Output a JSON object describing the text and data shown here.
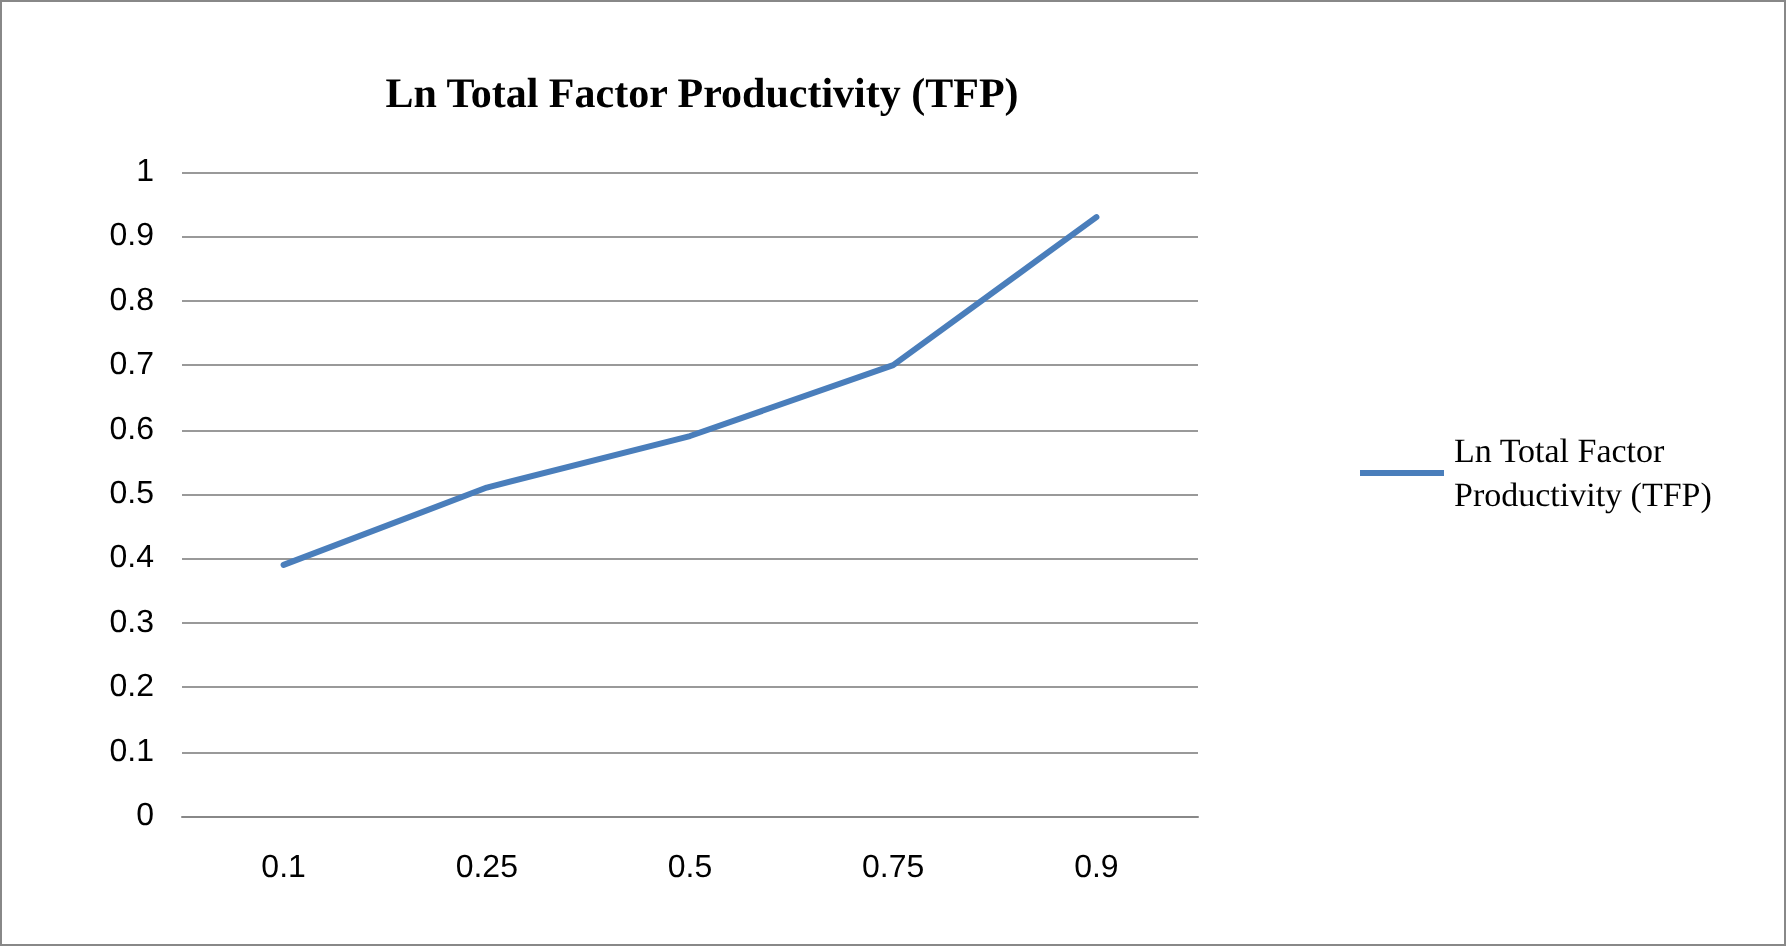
{
  "chart_data": {
    "type": "line",
    "title": "Ln Total Factor Productivity (TFP)",
    "categories": [
      "0.1",
      "0.25",
      "0.5",
      "0.75",
      "0.9"
    ],
    "series": [
      {
        "name": "Ln Total Factor Productivity (TFP)",
        "color": "#4a7ebb",
        "values": [
          0.39,
          0.51,
          0.59,
          0.7,
          0.93
        ]
      }
    ],
    "ylim": [
      0,
      1
    ],
    "yticks": [
      0,
      0.1,
      0.2,
      0.3,
      0.4,
      0.5,
      0.6,
      0.7,
      0.8,
      0.9,
      1
    ],
    "grid": "y",
    "legend": "right",
    "marker": "none",
    "line_style": "solid"
  }
}
